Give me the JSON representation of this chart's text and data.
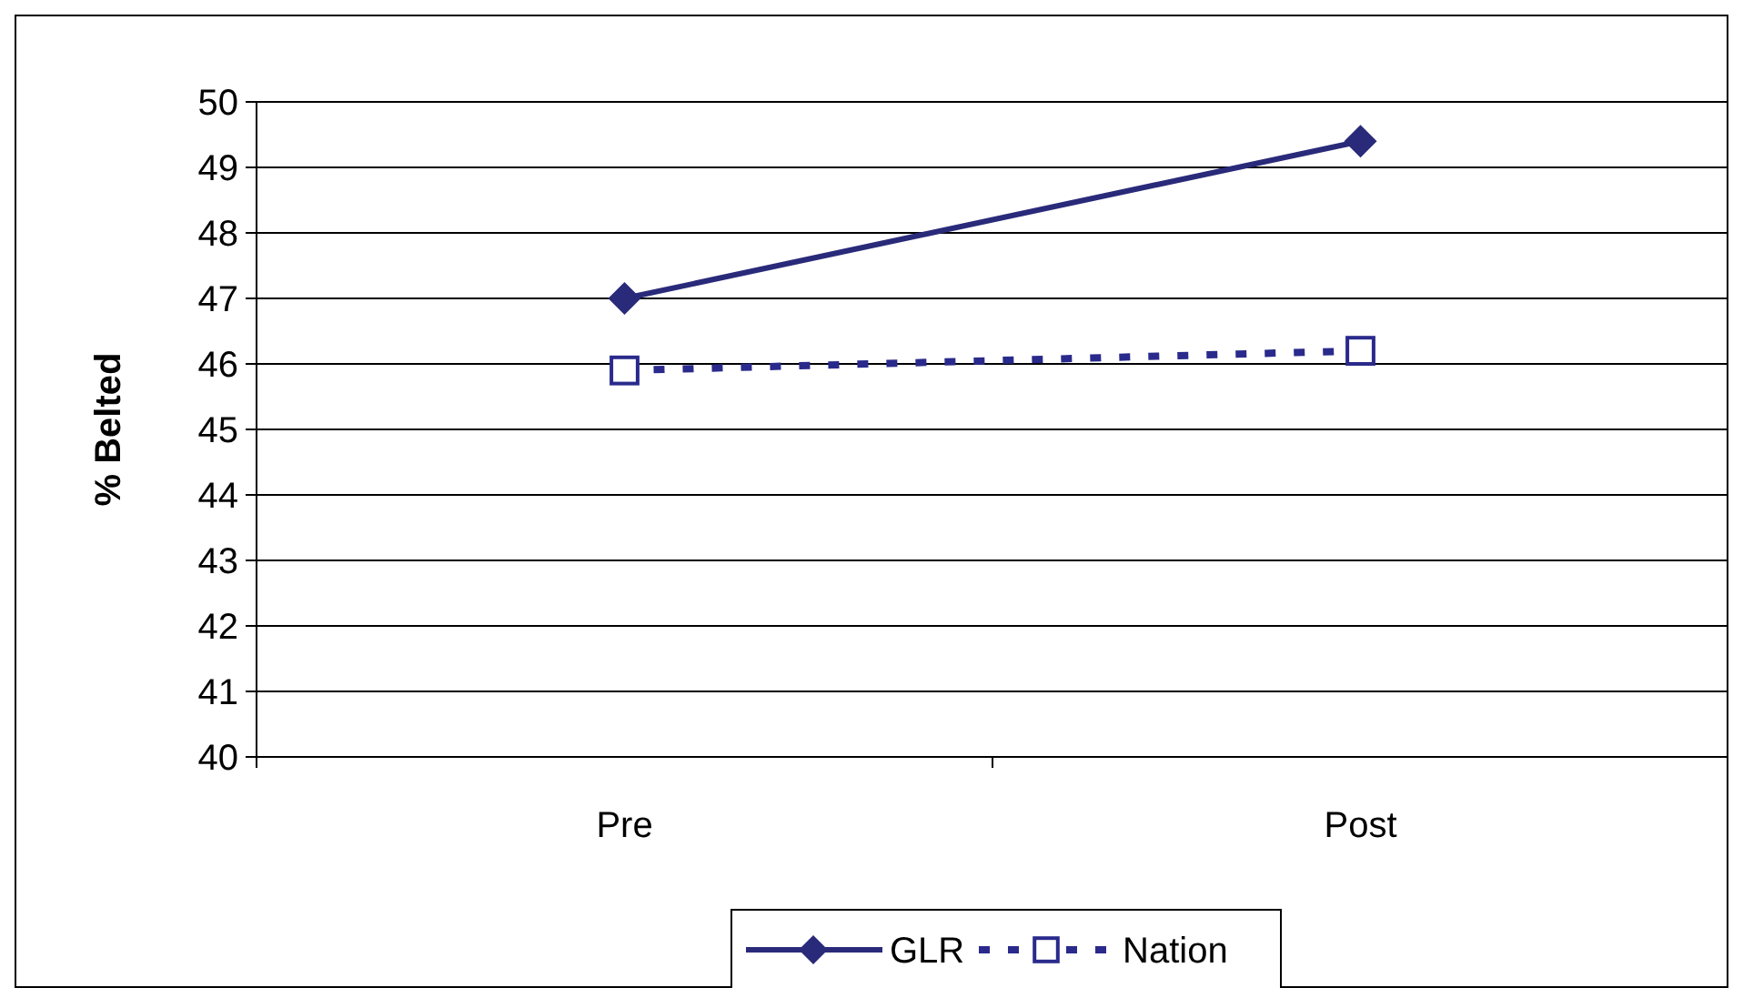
{
  "chart_data": {
    "type": "line",
    "ylabel": "% Belted",
    "categories": [
      "Pre",
      "Post"
    ],
    "series": [
      {
        "name": "GLR",
        "color": "#2a2a7a",
        "values": [
          47.0,
          49.4
        ],
        "marker": "diamond",
        "line_style": "solid"
      },
      {
        "name": "Nation",
        "color": "#2a2a8c",
        "values": [
          45.9,
          46.2
        ],
        "marker": "square",
        "line_style": "dashed"
      }
    ],
    "ylim": [
      40,
      50
    ],
    "yticks": [
      40,
      41,
      42,
      43,
      44,
      45,
      46,
      47,
      48,
      49,
      50
    ],
    "grid": "y",
    "legend": "bottom"
  }
}
